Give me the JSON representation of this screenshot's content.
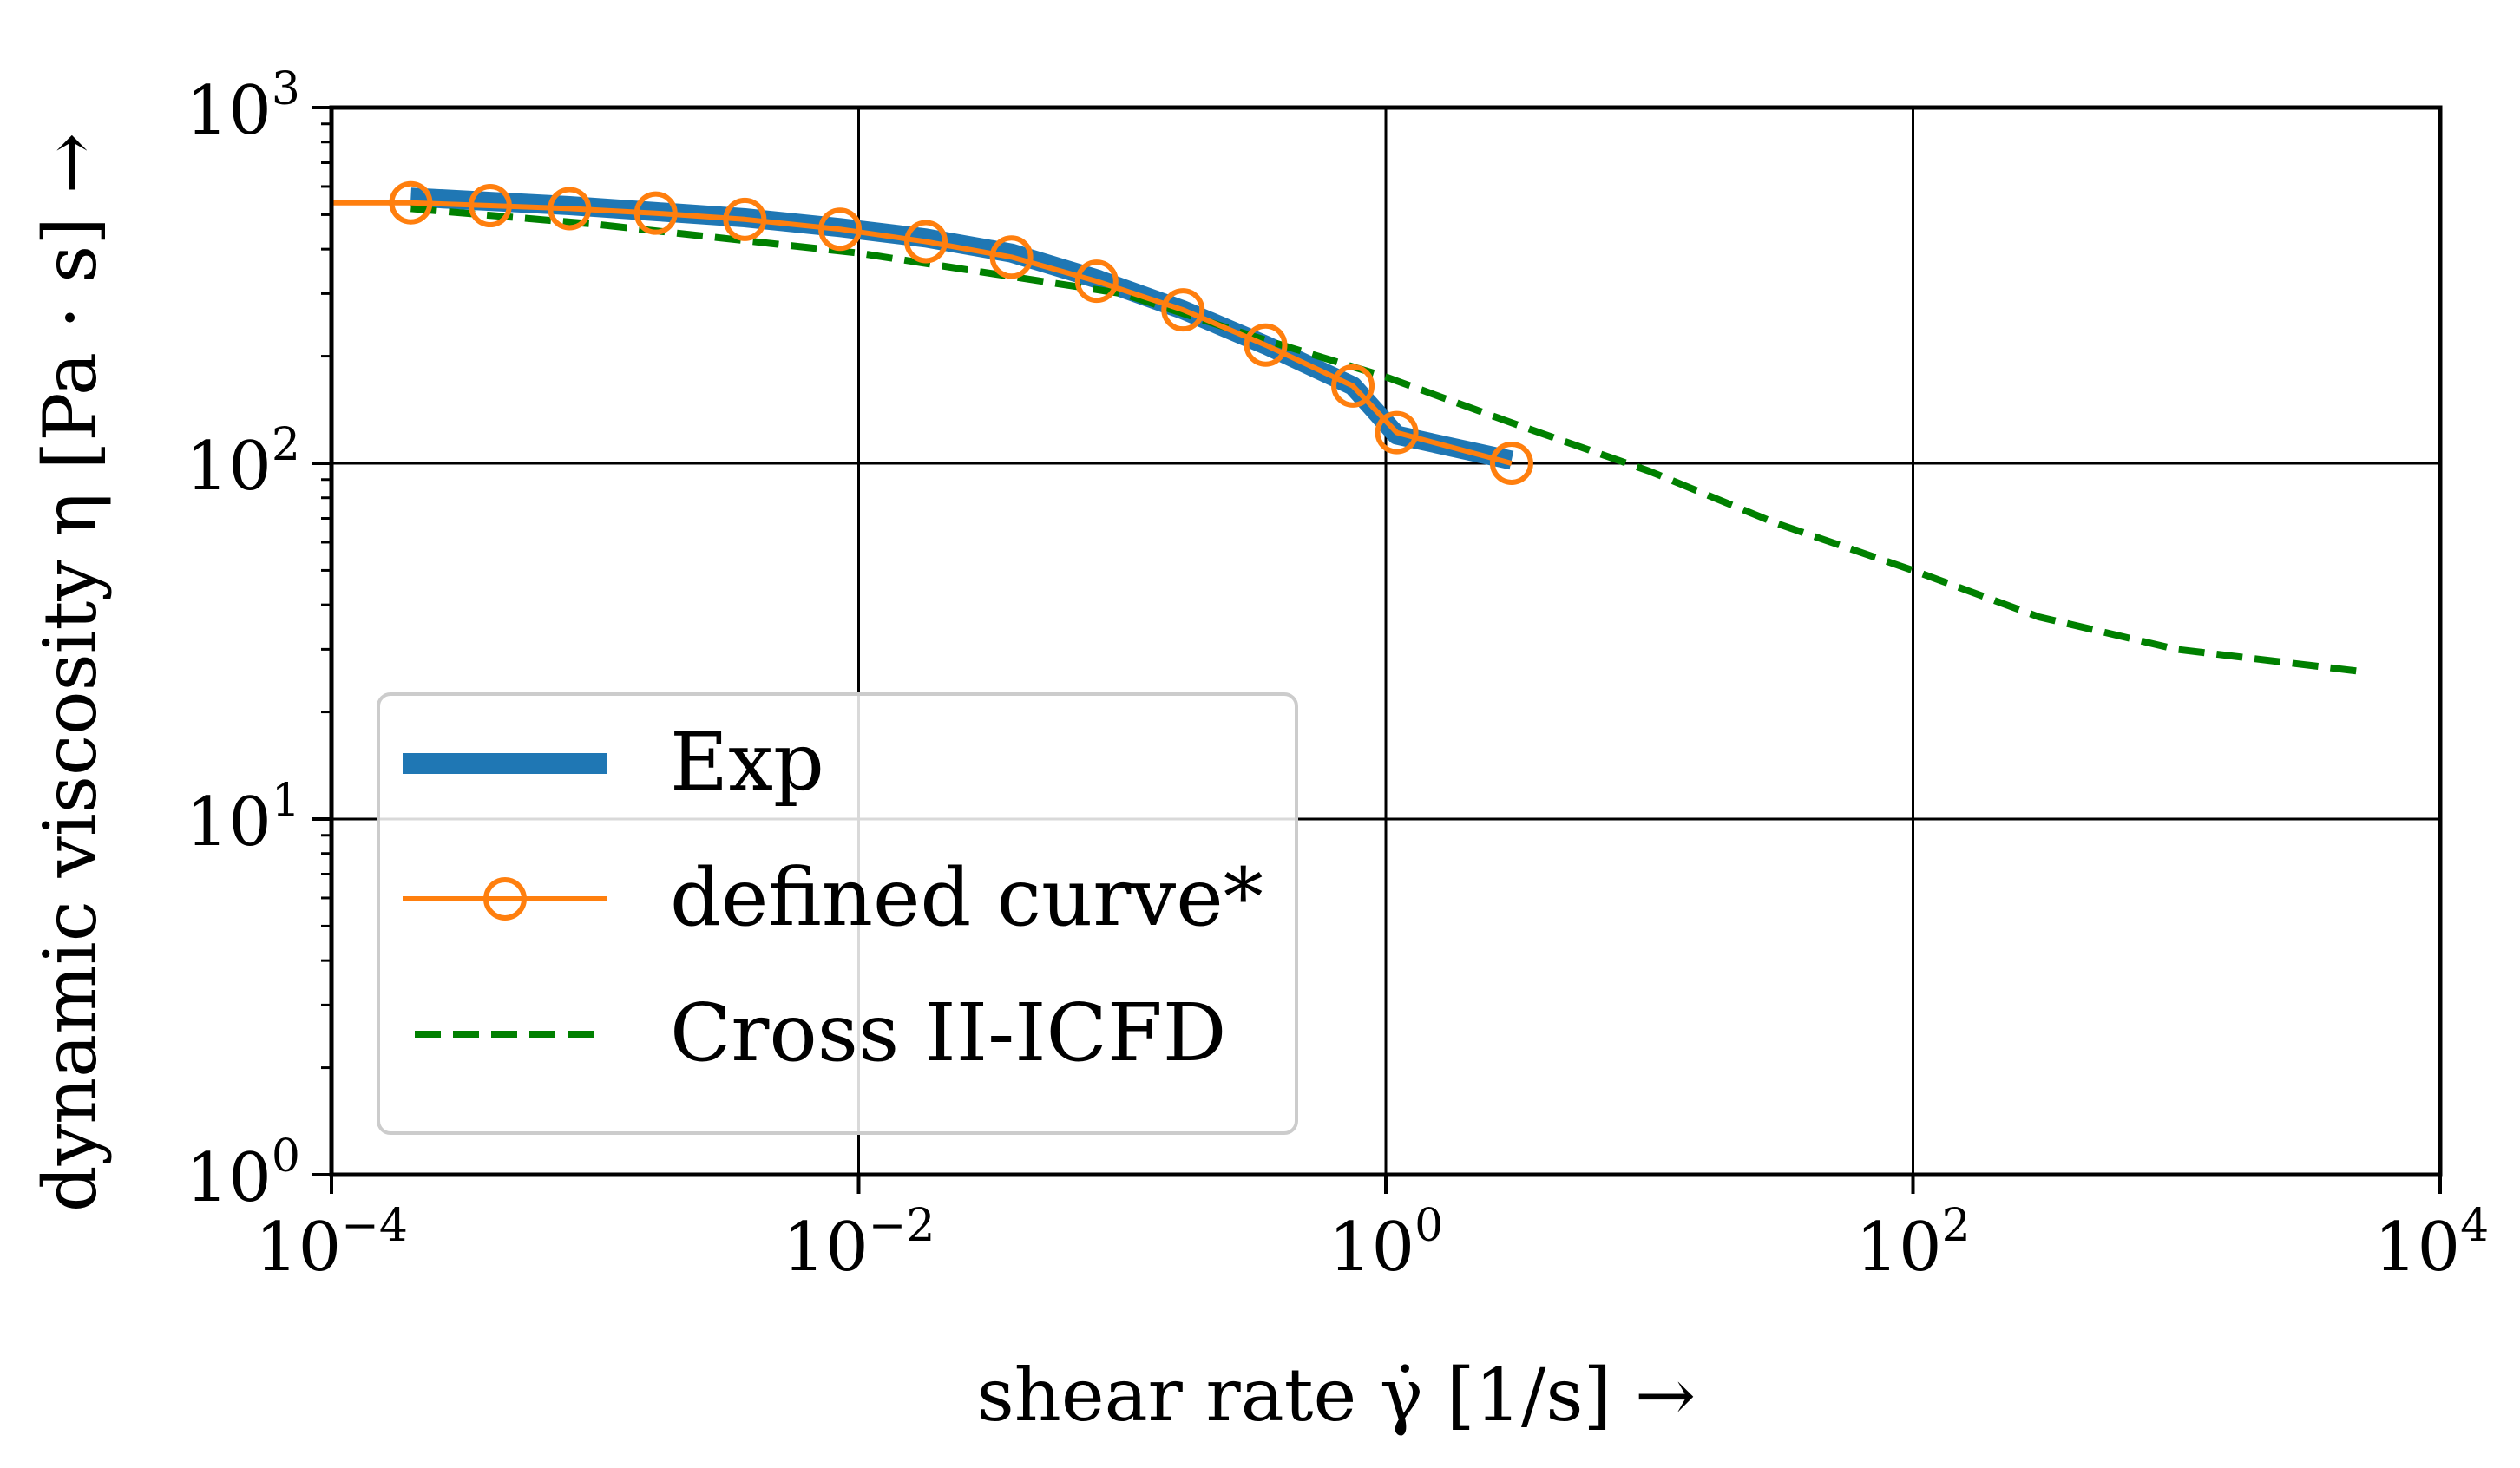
{
  "chart_data": {
    "type": "line",
    "x_scale": "log",
    "y_scale": "log",
    "xlabel": "shear rate γ̇  [1/s]  →",
    "ylabel": "dynamic viscosity η [Pa · s]  →",
    "xlim": [
      0.0001,
      10000
    ],
    "ylim": [
      1,
      1000
    ],
    "grid": "major",
    "x_ticks": [
      {
        "value": 0.0001,
        "base": "10",
        "exp": "−4"
      },
      {
        "value": 0.01,
        "base": "10",
        "exp": "−2"
      },
      {
        "value": 1,
        "base": "10",
        "exp": "0"
      },
      {
        "value": 100,
        "base": "10",
        "exp": "2"
      },
      {
        "value": 10000,
        "base": "10",
        "exp": "4"
      }
    ],
    "y_ticks": [
      {
        "value": 1,
        "base": "10",
        "exp": "0"
      },
      {
        "value": 10,
        "base": "10",
        "exp": "1"
      },
      {
        "value": 100,
        "base": "10",
        "exp": "2"
      },
      {
        "value": 1000,
        "base": "10",
        "exp": "3"
      }
    ],
    "series": [
      {
        "name": "Exp",
        "color": "#1f77b4",
        "style": "solid-thick",
        "x": [
          0.0002,
          0.0004,
          0.0008,
          0.0017,
          0.0037,
          0.0085,
          0.018,
          0.038,
          0.08,
          0.17,
          0.35,
          0.75,
          1.1,
          3.0
        ],
        "y": [
          560,
          545,
          530,
          510,
          490,
          460,
          430,
          390,
          330,
          270,
          215,
          165,
          120,
          102
        ]
      },
      {
        "name": "defined curve*",
        "color": "#ff7f0e",
        "style": "solid-circle-markers",
        "line_x": [
          0.0001,
          0.0002,
          0.0004,
          0.0008,
          0.0017,
          0.0037,
          0.0085,
          0.018,
          0.038,
          0.08,
          0.17,
          0.35,
          0.75,
          1.1,
          3.0
        ],
        "line_y": [
          540,
          540,
          530,
          520,
          505,
          485,
          455,
          420,
          380,
          325,
          270,
          215,
          165,
          122,
          100
        ],
        "x": [
          0.0002,
          0.0004,
          0.0008,
          0.0017,
          0.0037,
          0.0085,
          0.018,
          0.038,
          0.08,
          0.17,
          0.35,
          0.75,
          1.1,
          3.0
        ],
        "y": [
          540,
          530,
          520,
          505,
          485,
          455,
          420,
          380,
          325,
          270,
          215,
          165,
          122,
          100
        ]
      },
      {
        "name": "Cross II-ICFD",
        "color": "#008000",
        "style": "dashed",
        "x": [
          0.0002,
          0.001,
          0.01,
          0.1,
          0.3,
          1,
          3,
          10,
          30,
          100,
          300,
          1000,
          5000
        ],
        "y": [
          520,
          470,
          390,
          300,
          230,
          175,
          130,
          95,
          68,
          50,
          37,
          30,
          26
        ]
      }
    ]
  }
}
